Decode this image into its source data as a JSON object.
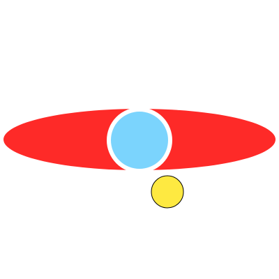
{
  "scene": {
    "background_color": "#ffffff",
    "shapes": [
      {
        "kind": "ellipse",
        "name": "red-ellipse",
        "fill": "#fe2a28"
      },
      {
        "kind": "circle",
        "name": "blue-circle",
        "fill": "#7bd4fd",
        "outline": "#ffffff"
      },
      {
        "kind": "circle",
        "name": "yellow-circle",
        "fill": "#fee941",
        "outline": "#000000"
      }
    ]
  }
}
